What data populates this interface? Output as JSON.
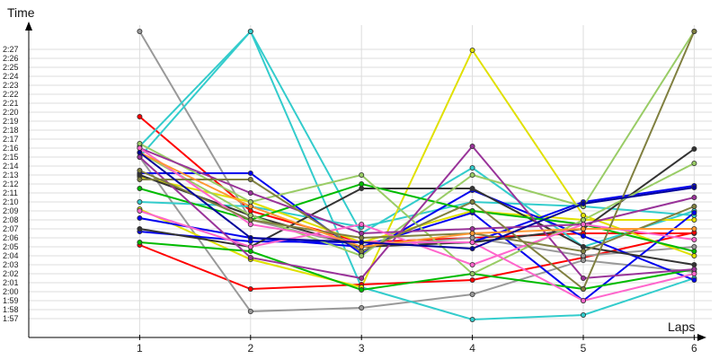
{
  "chart_data": {
    "type": "line",
    "title": "",
    "xlabel": "Laps",
    "ylabel": "Time",
    "x": [
      1,
      2,
      3,
      4,
      5,
      6
    ],
    "xlim": [
      0,
      6.1
    ],
    "ylim": [
      "1:55",
      "2:29"
    ],
    "x_ticks": [
      "1",
      "2",
      "3",
      "4",
      "5",
      "6"
    ],
    "y_ticks": [
      "1:57",
      "1:58",
      "1:59",
      "2:00",
      "2:01",
      "2:02",
      "2:03",
      "2:04",
      "2:05",
      "2:06",
      "2:07",
      "2:08",
      "2:09",
      "2:10",
      "2:11",
      "2:12",
      "2:13",
      "2:14",
      "2:15",
      "2:16",
      "2:17",
      "2:18",
      "2:19",
      "2:20",
      "2:21",
      "2:22",
      "2:23",
      "2:24",
      "2:25",
      "2:26",
      "2:27"
    ],
    "grid": true,
    "legend": "none",
    "series": [
      {
        "color": "#ff0000",
        "values": [
          "2:19.5",
          "2:09.0",
          "2:05.5",
          "2:06.0",
          "2:06.5",
          "2:06.5"
        ]
      },
      {
        "color": "#ff0000",
        "values": [
          "2:05.2",
          "2:00.3",
          "2:00.8",
          "2:01.3",
          "2:03.8",
          "2:06.6"
        ]
      },
      {
        "color": "#999999",
        "values": [
          "2:15.0",
          "1:57.8",
          "1:58.2",
          "1:59.7",
          "2:03.5",
          "2:02.2"
        ]
      },
      {
        "color": "#999999",
        "values": [
          "2:29.0",
          "2:08.0",
          "2:05.0",
          "2:06.0",
          "2:04.0",
          "2:05.0"
        ]
      },
      {
        "color": "#33cccc",
        "values": [
          "2:15.0",
          "2:29.0",
          "2:00.5",
          "1:56.9",
          "1:57.4",
          "2:01.5"
        ]
      },
      {
        "color": "#33cccc",
        "values": [
          "2:16.2",
          "2:29.0",
          "2:06.5",
          "2:13.8",
          "2:05.0",
          "2:09.0"
        ]
      },
      {
        "color": "#33cccc",
        "values": [
          "2:10.0",
          "2:09.5",
          "2:07.2",
          "2:10.0",
          "2:09.5",
          "2:08.5"
        ]
      },
      {
        "color": "#e0e000",
        "values": [
          "2:09.2",
          "2:03.6",
          "2:00.5",
          "2:26.9",
          "2:08.5",
          "2:04.0"
        ]
      },
      {
        "color": "#e0e000",
        "values": [
          "2:12.8",
          "2:10.0",
          "2:05.5",
          "2:09.0",
          "2:08.0",
          "2:08.0"
        ]
      },
      {
        "color": "#0000ee",
        "values": [
          "2:13.2",
          "2:13.2",
          "2:04.2",
          "2:11.3",
          "2:06.2",
          "2:01.3"
        ]
      },
      {
        "color": "#0000ee",
        "values": [
          "2:08.2",
          "2:06.0",
          "2:05.0",
          "2:08.8",
          "1:59.0",
          "2:08.8"
        ]
      },
      {
        "color": "#0000ee",
        "values": [
          "2:06.7",
          "2:05.6",
          "2:05.5",
          "2:05.5",
          "2:10.0",
          "2:11.8"
        ]
      },
      {
        "color": "#333333",
        "values": [
          "2:13.0",
          "2:08.5",
          "2:05.0",
          "2:05.5",
          "2:07.0",
          "2:15.9"
        ]
      },
      {
        "color": "#333333",
        "values": [
          "2:07.0",
          "2:05.0",
          "2:11.5",
          "2:11.5",
          "2:05.0",
          "2:03.0"
        ]
      },
      {
        "color": "#00bb00",
        "values": [
          "2:05.5",
          "2:04.5",
          "2:00.2",
          "2:02.0",
          "2:00.3",
          "2:02.5"
        ]
      },
      {
        "color": "#00bb00",
        "values": [
          "2:11.5",
          "2:08.0",
          "2:12.0",
          "2:09.0",
          "2:07.5",
          "2:04.5"
        ]
      },
      {
        "color": "#99cc66",
        "values": [
          "2:16.5",
          "2:10.0",
          "2:13.0",
          "2:02.0",
          "2:08.0",
          "2:14.3"
        ]
      },
      {
        "color": "#99cc66",
        "values": [
          "2:15.5",
          "2:08.5",
          "2:04.0",
          "2:13.0",
          "2:09.5",
          "2:29.0"
        ]
      },
      {
        "color": "#993399",
        "values": [
          "2:15.0",
          "2:03.8",
          "2:01.5",
          "2:16.2",
          "2:01.5",
          "2:02.5"
        ]
      },
      {
        "color": "#993399",
        "values": [
          "2:16.0",
          "2:11.0",
          "2:06.5",
          "2:07.0",
          "2:07.5",
          "2:10.5"
        ]
      },
      {
        "color": "#ff66cc",
        "values": [
          "2:16.0",
          "2:07.5",
          "2:05.5",
          "2:05.5",
          "1:59.0",
          "2:02.0"
        ]
      },
      {
        "color": "#ff66cc",
        "values": [
          "2:09.0",
          "2:05.0",
          "2:07.5",
          "2:03.0",
          "2:07.5",
          "2:05.8"
        ]
      },
      {
        "color": "#808040",
        "values": [
          "2:12.5",
          "2:12.5",
          "2:04.5",
          "2:10.0",
          "2:00.3",
          "2:29.0"
        ]
      },
      {
        "color": "#808040",
        "values": [
          "2:13.5",
          "2:08.0",
          "2:06.0",
          "2:06.5",
          "2:04.5",
          "2:09.5"
        ]
      },
      {
        "color": "#ff9933",
        "values": [
          "2:15.5",
          "2:09.5",
          "2:05.0",
          "2:06.5",
          "2:07.0",
          "2:07.0"
        ]
      },
      {
        "color": "#000099",
        "values": [
          "2:15.5",
          "2:06.0",
          "2:05.5",
          "2:04.8",
          "2:09.8",
          "2:11.6"
        ]
      }
    ]
  }
}
